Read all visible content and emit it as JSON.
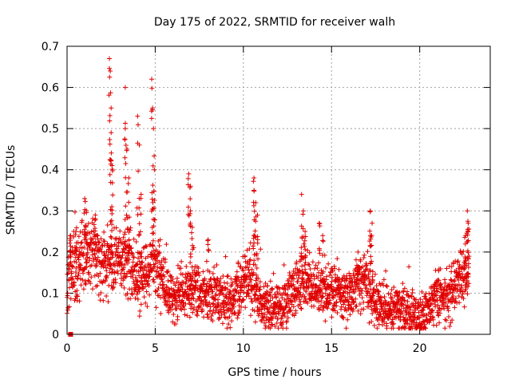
{
  "chart_data": {
    "type": "scatter",
    "title": "Day 175 of 2022, SRMTID for receiver walh",
    "xlabel": "GPS time / hours",
    "ylabel": "SRMTID / TECUs",
    "xlim": [
      0,
      24
    ],
    "ylim": [
      0,
      0.7
    ],
    "xticks": [
      0,
      5,
      10,
      15,
      20
    ],
    "xtick_labels": [
      "0",
      "5",
      "10",
      "15",
      "20"
    ],
    "yticks": [
      0,
      0.1,
      0.2,
      0.3,
      0.4,
      0.5,
      0.6,
      0.7
    ],
    "ytick_labels": [
      "0",
      "0.1",
      "0.2",
      "0.3",
      "0.4",
      "0.5",
      "0.6",
      "0.7"
    ],
    "grid": true,
    "marker": "+",
    "series": [
      {
        "name": "SRMTID",
        "color": "#e00000",
        "trend_x": [
          0,
          0.3,
          0.6,
          1.0,
          1.5,
          2.0,
          2.5,
          3.0,
          3.5,
          4.0,
          4.5,
          5.0,
          5.5,
          6.0,
          6.5,
          7.0,
          7.5,
          8.0,
          8.5,
          9.0,
          9.5,
          10.0,
          10.5,
          11.0,
          11.5,
          12.0,
          12.5,
          13.0,
          13.5,
          14.0,
          14.5,
          15.0,
          15.5,
          16.0,
          16.5,
          17.0,
          17.5,
          18.0,
          18.5,
          19.0,
          19.5,
          20.0,
          20.5,
          21.0,
          21.5,
          22.0,
          22.5,
          22.8
        ],
        "trend_y": [
          0.14,
          0.17,
          0.16,
          0.2,
          0.19,
          0.18,
          0.17,
          0.19,
          0.17,
          0.13,
          0.15,
          0.18,
          0.12,
          0.09,
          0.1,
          0.11,
          0.1,
          0.09,
          0.1,
          0.08,
          0.09,
          0.12,
          0.14,
          0.07,
          0.06,
          0.07,
          0.08,
          0.12,
          0.13,
          0.11,
          0.1,
          0.11,
          0.1,
          0.09,
          0.13,
          0.12,
          0.08,
          0.06,
          0.06,
          0.06,
          0.05,
          0.03,
          0.06,
          0.1,
          0.08,
          0.12,
          0.15,
          0.16
        ],
        "spread": 0.035,
        "spikes": [
          {
            "x": 0.2,
            "y": 0.24
          },
          {
            "x": 0.5,
            "y": 0.25
          },
          {
            "x": 1.0,
            "y": 0.33
          },
          {
            "x": 1.1,
            "y": 0.3
          },
          {
            "x": 1.6,
            "y": 0.29
          },
          {
            "x": 2.4,
            "y": 0.67
          },
          {
            "x": 2.45,
            "y": 0.64
          },
          {
            "x": 2.5,
            "y": 0.55
          },
          {
            "x": 2.5,
            "y": 0.49
          },
          {
            "x": 2.55,
            "y": 0.41
          },
          {
            "x": 3.3,
            "y": 0.6
          },
          {
            "x": 3.3,
            "y": 0.5
          },
          {
            "x": 3.4,
            "y": 0.45
          },
          {
            "x": 3.5,
            "y": 0.38
          },
          {
            "x": 4.0,
            "y": 0.53
          },
          {
            "x": 4.1,
            "y": 0.46
          },
          {
            "x": 4.2,
            "y": 0.34
          },
          {
            "x": 4.8,
            "y": 0.62
          },
          {
            "x": 4.85,
            "y": 0.55
          },
          {
            "x": 4.9,
            "y": 0.5
          },
          {
            "x": 4.95,
            "y": 0.4
          },
          {
            "x": 6.9,
            "y": 0.39
          },
          {
            "x": 7.0,
            "y": 0.36
          },
          {
            "x": 7.0,
            "y": 0.3
          },
          {
            "x": 7.1,
            "y": 0.26
          },
          {
            "x": 8.0,
            "y": 0.23
          },
          {
            "x": 10.6,
            "y": 0.38
          },
          {
            "x": 10.6,
            "y": 0.35
          },
          {
            "x": 10.7,
            "y": 0.32
          },
          {
            "x": 10.8,
            "y": 0.29
          },
          {
            "x": 13.3,
            "y": 0.34
          },
          {
            "x": 13.4,
            "y": 0.3
          },
          {
            "x": 13.5,
            "y": 0.25
          },
          {
            "x": 14.3,
            "y": 0.27
          },
          {
            "x": 14.5,
            "y": 0.24
          },
          {
            "x": 17.2,
            "y": 0.3
          },
          {
            "x": 17.3,
            "y": 0.27
          },
          {
            "x": 17.2,
            "y": 0.24
          },
          {
            "x": 16.5,
            "y": 0.2
          },
          {
            "x": 22.7,
            "y": 0.3
          },
          {
            "x": 22.75,
            "y": 0.27
          },
          {
            "x": 22.6,
            "y": 0.24
          }
        ],
        "origin_marker": {
          "x": 0.2,
          "y": 0.0
        }
      }
    ]
  }
}
